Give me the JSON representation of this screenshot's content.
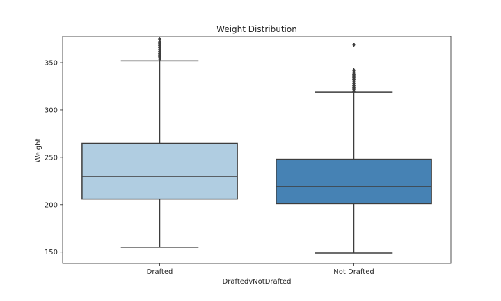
{
  "chart_data": {
    "type": "box",
    "title": "Weight Distribution",
    "xlabel": "DraftedvNotDrafted",
    "ylabel": "Weight",
    "ylim": [
      138,
      378
    ],
    "yticks": [
      150,
      200,
      250,
      300,
      350
    ],
    "grid": false,
    "legend": "none",
    "categories": [
      "Drafted",
      "Not Drafted"
    ],
    "boxes": [
      {
        "category": "Drafted",
        "color": "#b0cde1",
        "whisker_low": 155,
        "q1": 206,
        "median": 230,
        "q3": 265,
        "whisker_high": 352,
        "outliers": [
          354,
          356,
          358,
          360,
          362,
          364,
          366,
          368,
          370,
          372,
          375
        ]
      },
      {
        "category": "Not Drafted",
        "color": "#4682b4",
        "whisker_low": 149,
        "q1": 201,
        "median": 219,
        "q3": 248,
        "whisker_high": 319,
        "outliers": [
          320,
          322,
          324,
          326,
          328,
          330,
          332,
          334,
          336,
          338,
          340,
          342,
          369
        ]
      }
    ]
  }
}
